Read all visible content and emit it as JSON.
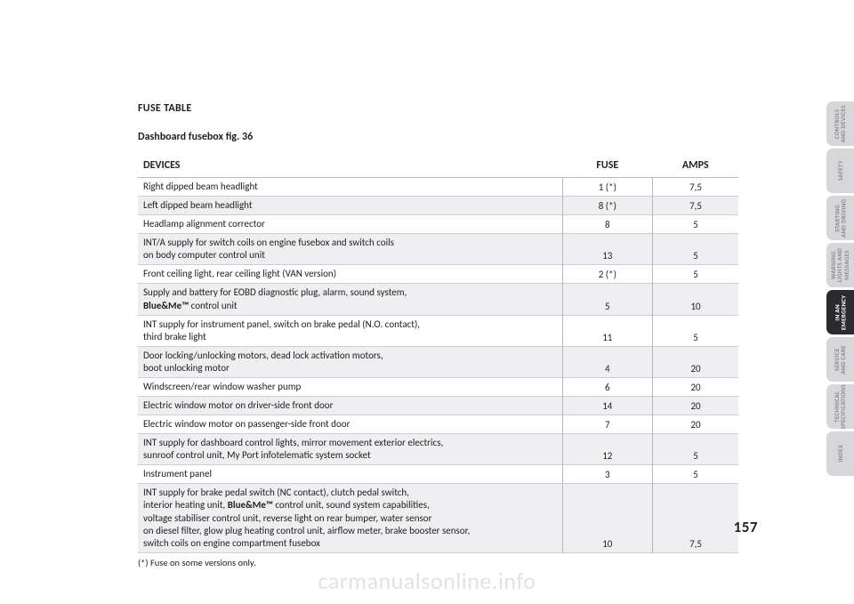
{
  "page_number": "157",
  "heading": "FUSE TABLE",
  "subheading": "Dashboard fusebox fig. 36",
  "footnote": "(*)  Fuse on some versions only.",
  "watermark": "carmanualsonline.info",
  "columns": {
    "devices": "DEVICES",
    "fuse": "FUSE",
    "amps": "AMPS"
  },
  "rows": [
    {
      "html": "Right dipped beam headlight",
      "fuse": "1 (*)",
      "amps": "7,5",
      "alt": false
    },
    {
      "html": "Left dipped beam headlight",
      "fuse": "8 (*)",
      "amps": "7,5",
      "alt": true
    },
    {
      "html": "Headlamp alignment corrector",
      "fuse": "8",
      "amps": "5",
      "alt": false
    },
    {
      "html": "INT/A supply for switch coils on engine fusebox and switch coils<br>on body computer control unit",
      "fuse": "13",
      "amps": "5",
      "alt": true
    },
    {
      "html": "Front ceiling light, rear ceiling light (VAN version)",
      "fuse": "2 (*)",
      "amps": "5",
      "alt": false
    },
    {
      "html": "Supply and battery for EOBD diagnostic plug, alarm, sound system,<br><span class=\"bm\">Blue&amp;Me™</span> control unit",
      "fuse": "5",
      "amps": "10",
      "alt": true
    },
    {
      "html": "INT supply for instrument panel, switch on brake pedal (N.O. contact),<br>third brake light",
      "fuse": "11",
      "amps": "5",
      "alt": false
    },
    {
      "html": "Door locking/unlocking motors, dead lock activation motors,<br>boot unlocking motor",
      "fuse": "4",
      "amps": "20",
      "alt": true
    },
    {
      "html": "Windscreen/rear window washer pump",
      "fuse": "6",
      "amps": "20",
      "alt": false
    },
    {
      "html": "Electric window motor on driver-side front door",
      "fuse": "14",
      "amps": "20",
      "alt": true
    },
    {
      "html": "Electric window motor on passenger-side front door",
      "fuse": "7",
      "amps": "20",
      "alt": false
    },
    {
      "html": "INT supply for dashboard control lights, mirror movement exterior electrics,<br>sunroof control unit, My Port infotelematic system socket",
      "fuse": "12",
      "amps": "5",
      "alt": true
    },
    {
      "html": "Instrument panel",
      "fuse": "3",
      "amps": "5",
      "alt": false
    },
    {
      "html": "INT supply for brake pedal switch (NC contact), clutch pedal switch,<br>interior heating unit, <span class=\"bm\">Blue&amp;Me™</span> control unit, sound system capabilities,<br>voltage stabiliser control unit, reverse light on rear bumper, water sensor<br>on diesel filter, glow plug heating control unit, airflow meter, brake booster sensor,<br>switch coils on engine compartment fusebox",
      "fuse": "10",
      "amps": "7,5",
      "alt": true
    }
  ],
  "tabs": [
    {
      "label": "CONTROLS\nAND DEVICES",
      "active": false
    },
    {
      "label": "SAFETY",
      "active": false
    },
    {
      "label": "STARTING\nAND DRIVING",
      "active": false
    },
    {
      "label": "WARNING\nLIGHTS AND\nMESSAGES",
      "active": false
    },
    {
      "label": "IN AN\nEMERGENCY",
      "active": true
    },
    {
      "label": "SERVICE\nAND CARE",
      "active": false
    },
    {
      "label": "TECHNICAL\nSPECIFICATIONS",
      "active": false
    },
    {
      "label": "INDEX",
      "active": false
    }
  ]
}
